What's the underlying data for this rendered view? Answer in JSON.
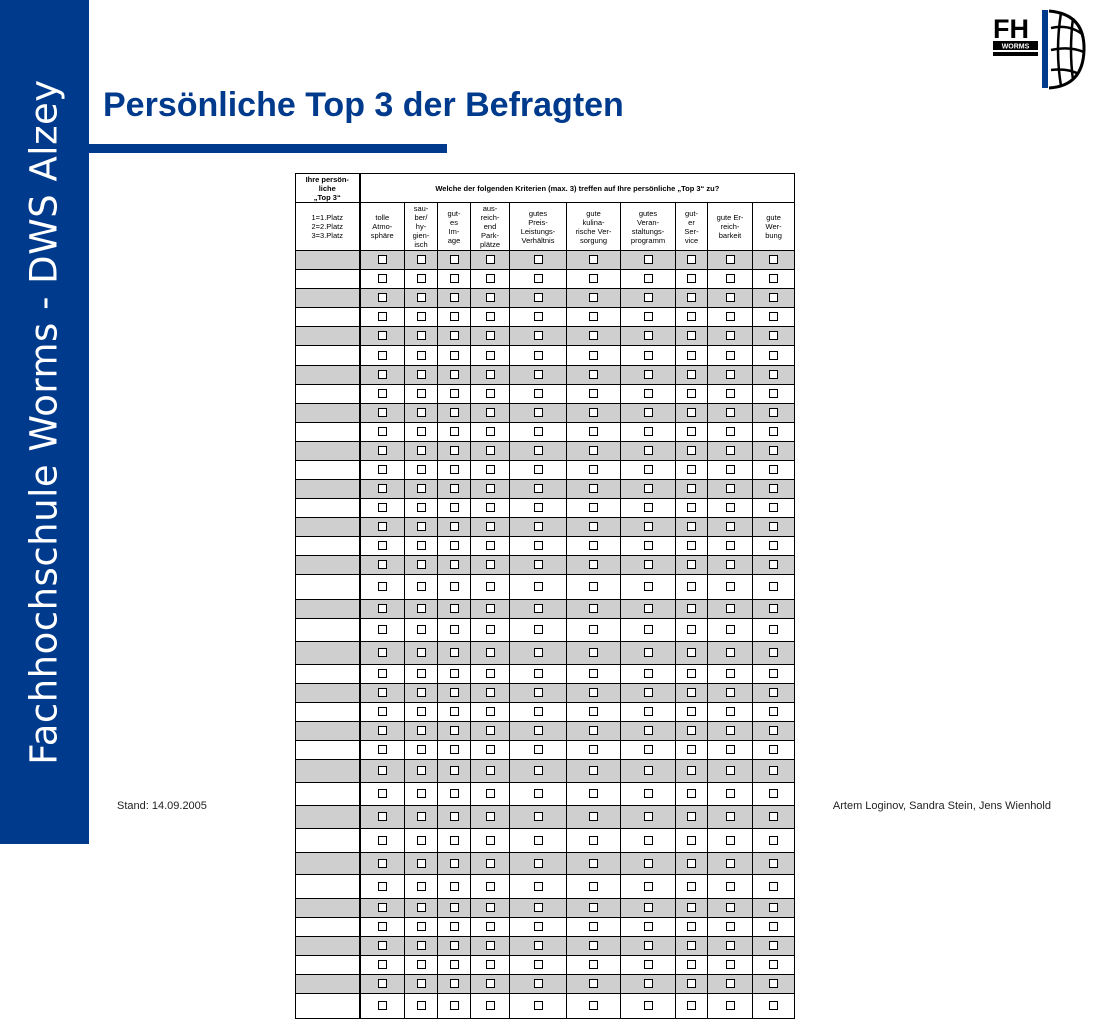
{
  "sidebar": {
    "text": "Fachhochschule Worms - DWS Alzey"
  },
  "title": "Persönliche Top 3 der Befragten",
  "logo": {
    "letters": "FH",
    "subtext": "WORMS"
  },
  "footer": {
    "left": "Stand: 14.09.2005",
    "right": "Artem Loginov, Sandra Stein, Jens Wienhold"
  },
  "colors": {
    "brand_blue": "#003a8c",
    "row_gray": "#cfcfcf"
  },
  "survey": {
    "corner_header": "Ihre persön-\nliche\n„Top 3“",
    "question": "Welche der folgenden Kriterien (max. 3) treffen auf Ihre persönliche „Top 3“ zu?",
    "legend": "1=1.Platz\n2=2.Platz\n3=3.Platz",
    "criteria": [
      "tolle\nAtmo-\nsphäre",
      "sau-\nber/\nhy-\ngien-\nisch",
      "gut-\nes\nIm-\nage",
      "aus-\nreich-\nend\nPark-\nplätze",
      "gutes\nPreis-\nLeistungs-\nVerhältnis",
      "gute\nkulina-\nrische Ver-\nsorgung",
      "gutes\nVeran-\nstaltungs-\nprogramm",
      "gut-\ner\nSer-\nvice",
      "gute Er-\nreich-\nbarkeit",
      "gute\nWer-\nbung"
    ],
    "checkbox_icon": "empty-checkbox-icon",
    "rows": [
      {
        "shaded": true
      },
      {
        "shaded": false
      },
      {
        "shaded": true
      },
      {
        "shaded": false
      },
      {
        "shaded": true
      },
      {
        "shaded": false
      },
      {
        "shaded": true
      },
      {
        "shaded": false
      },
      {
        "shaded": true
      },
      {
        "shaded": false
      },
      {
        "shaded": true
      },
      {
        "shaded": false
      },
      {
        "shaded": true
      },
      {
        "shaded": false
      },
      {
        "shaded": true
      },
      {
        "shaded": false
      },
      {
        "shaded": true
      },
      {
        "shaded": false
      },
      {
        "shaded": true
      },
      {
        "shaded": false
      },
      {
        "shaded": true
      },
      {
        "shaded": false
      },
      {
        "shaded": true
      },
      {
        "shaded": false
      },
      {
        "shaded": true
      },
      {
        "shaded": false
      },
      {
        "shaded": true
      },
      {
        "shaded": false
      },
      {
        "shaded": true
      },
      {
        "shaded": false
      },
      {
        "shaded": true
      },
      {
        "shaded": false
      },
      {
        "shaded": true
      },
      {
        "shaded": false
      },
      {
        "shaded": true
      },
      {
        "shaded": false
      },
      {
        "shaded": true
      },
      {
        "shaded": false
      }
    ]
  }
}
